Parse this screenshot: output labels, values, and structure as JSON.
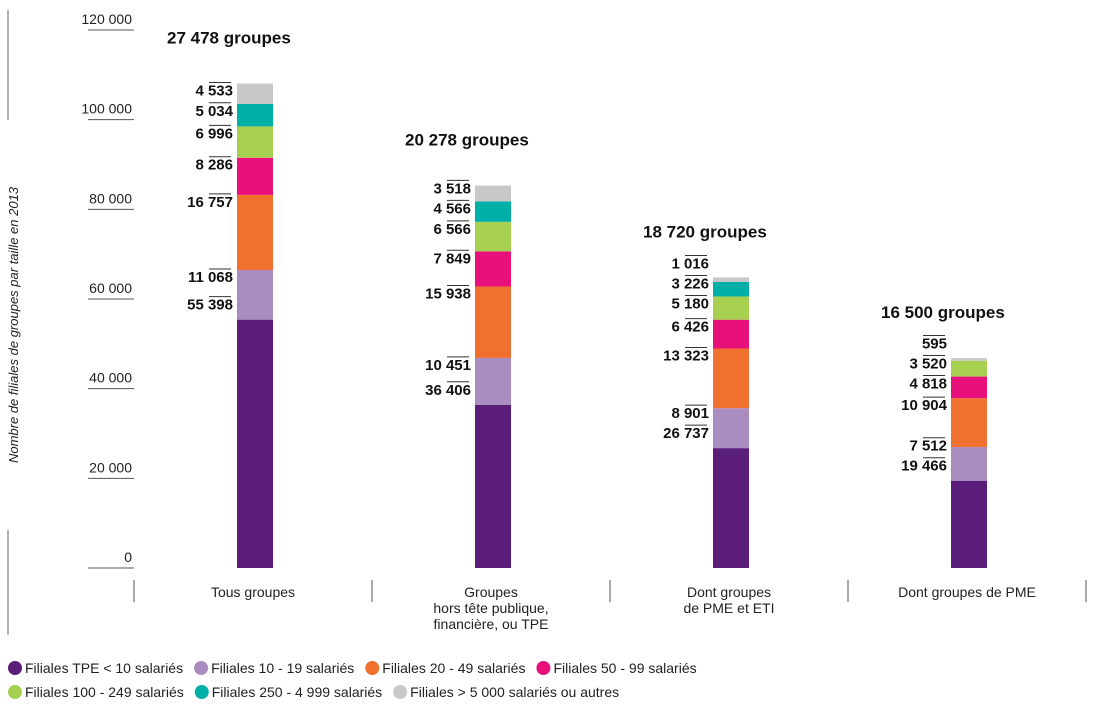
{
  "chart_data": {
    "type": "stacked_bar",
    "y_axis_label": "Nombre de filiales de groupes par taille en 2013",
    "categories": [
      [
        "Tous groupes"
      ],
      [
        "Groupes",
        "hors tête publique,",
        "financière, ou TPE"
      ],
      [
        "Dont groupes",
        "de PME et ETI"
      ],
      [
        "Dont groupes de PME"
      ]
    ],
    "total_labels": [
      "27 478 groupes",
      "20 278 groupes",
      "18 720 groupes",
      "16 500 groupes"
    ],
    "ylim": [
      0,
      120000
    ],
    "yticks": [
      0,
      {
        "value": 20000,
        "label": "20 000"
      },
      {
        "value": 40000,
        "label": "40 000"
      },
      {
        "value": 60000,
        "label": "60 000"
      },
      {
        "value": 80000,
        "label": "80 000"
      },
      {
        "value": 100000,
        "label": "100 000"
      },
      {
        "value": 120000,
        "label": "120 000"
      }
    ],
    "series": [
      {
        "name": "Filiales TPE < 10 salariés",
        "color": "#5a1e7a",
        "values": [
          55398,
          36406,
          26737,
          19466
        ],
        "value_labels": [
          "55 398",
          "36 406",
          "26 737",
          "19 466"
        ]
      },
      {
        "name": "Filiales 10 - 19 salariés",
        "color": "#a98cc0",
        "values": [
          11068,
          10451,
          8901,
          7512
        ],
        "value_labels": [
          "11 068",
          "10 451",
          "8 901",
          "7 512"
        ]
      },
      {
        "name": "Filiales 20 - 49 salariés",
        "color": "#f07030",
        "values": [
          16757,
          15938,
          13323,
          10904
        ],
        "value_labels": [
          "16 757",
          "15 938",
          "13 323",
          "10 904"
        ]
      },
      {
        "name": "Filiales 50 - 99 salariés",
        "color": "#e8107a",
        "values": [
          8286,
          7849,
          6426,
          4818
        ],
        "value_labels": [
          "8 286",
          "7 849",
          "6 426",
          "4 818"
        ]
      },
      {
        "name": "Filiales 100 - 249 salariés",
        "color": "#a8d050",
        "values": [
          6996,
          6566,
          5180,
          3520
        ],
        "value_labels": [
          "6 996",
          "6 566",
          "5 180",
          "3 520"
        ]
      },
      {
        "name": "Filiales 250 - 4 999 salariés",
        "color": "#00b0a8",
        "values": [
          5034,
          4566,
          3226,
          null
        ],
        "value_labels": [
          "5 034",
          "4 566",
          "3 226",
          null
        ]
      },
      {
        "name": "Filiales > 5 000 salariés ou autres",
        "color": "#c8c8c8",
        "values": [
          4533,
          3518,
          1016,
          595
        ],
        "value_labels": [
          "4 533",
          "3 518",
          "1 016",
          "595"
        ]
      }
    ]
  }
}
